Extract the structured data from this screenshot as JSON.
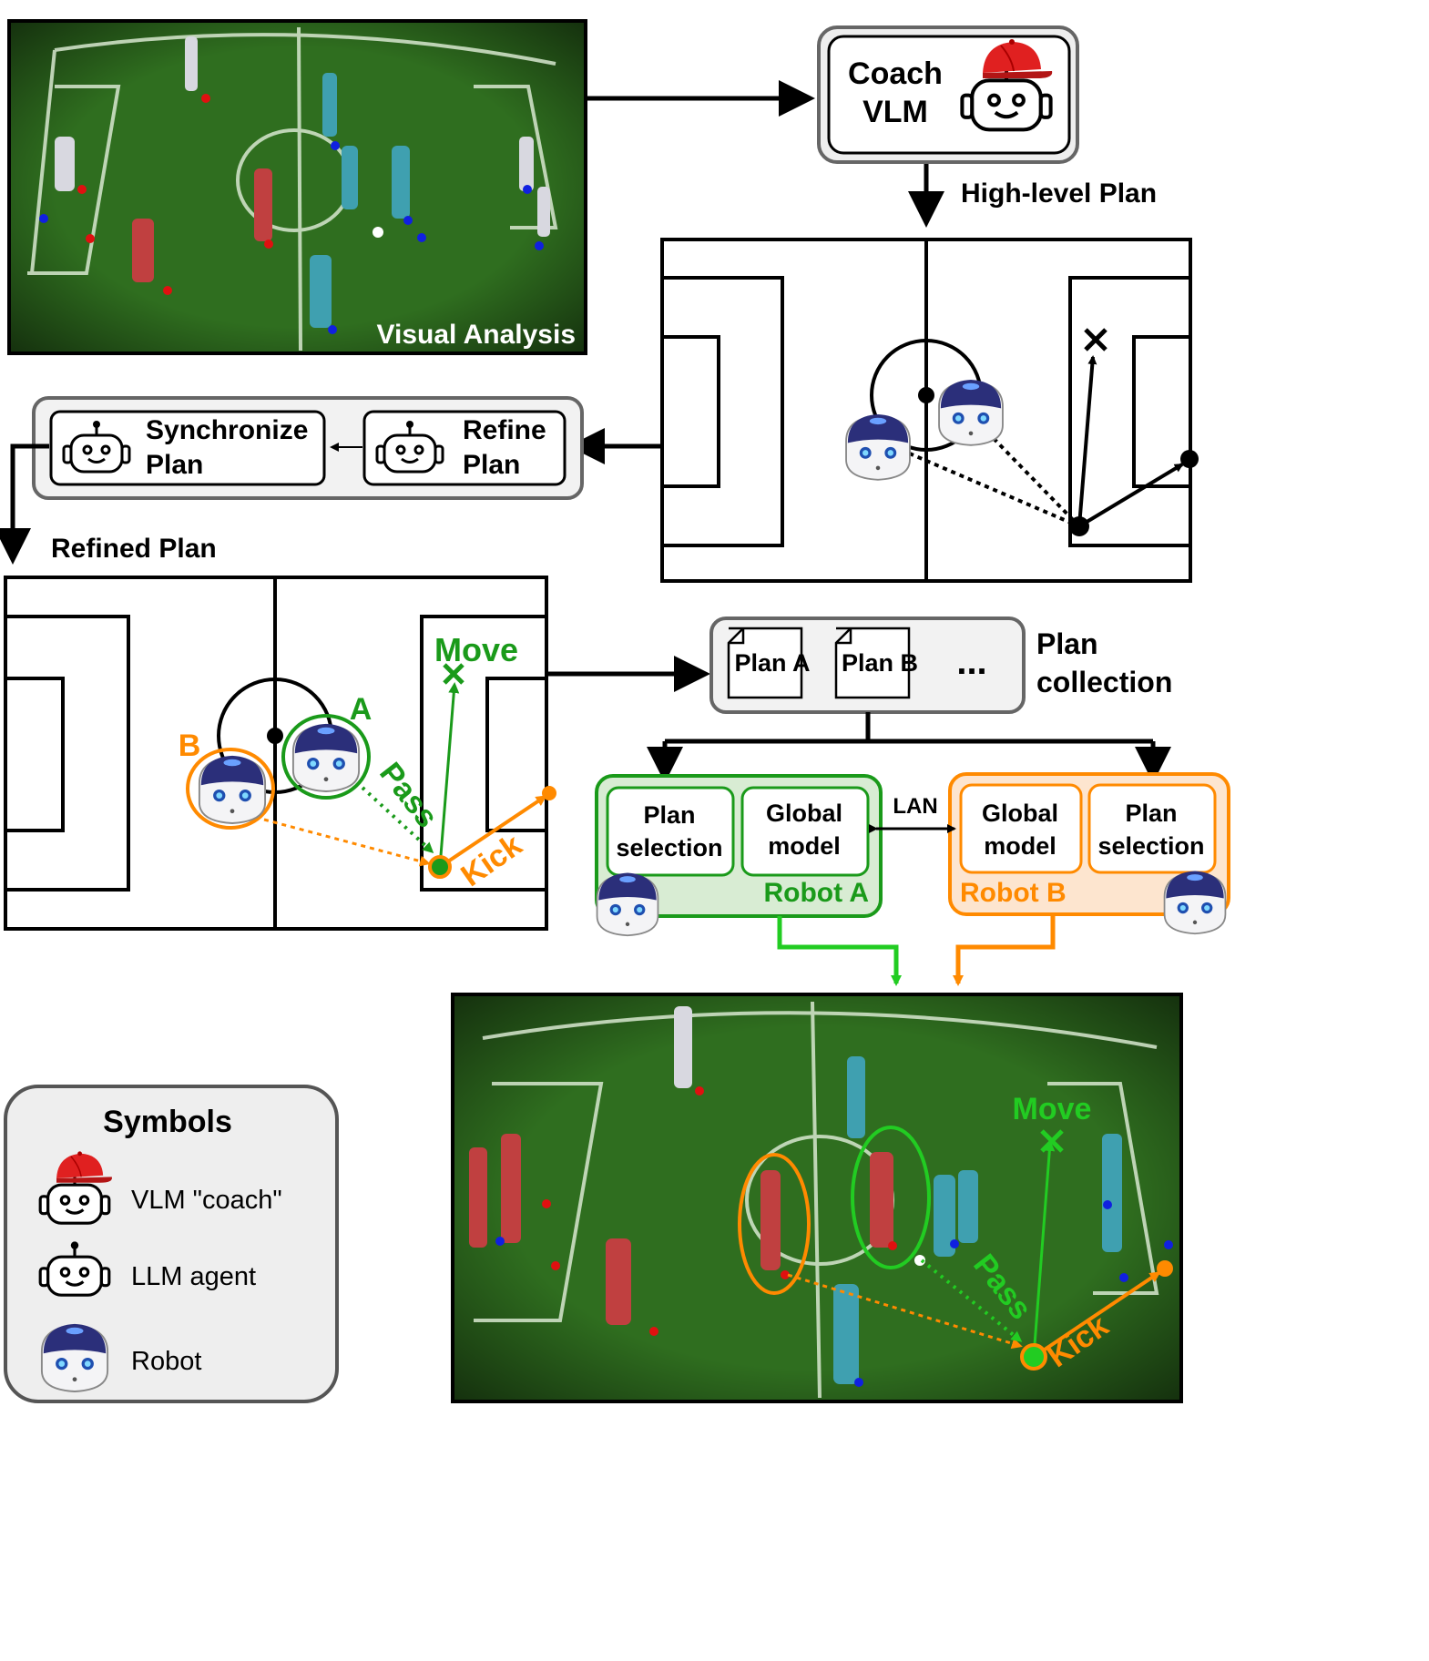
{
  "labels": {
    "visual_analysis": "Visual Analysis",
    "coach_line1": "Coach",
    "coach_line2": "VLM",
    "high_level_plan": "High-level Plan",
    "sync_line1": "Synchronize",
    "sync_line2": "Plan",
    "refine_line1": "Refine",
    "refine_line2": "Plan",
    "refined_plan": "Refined Plan",
    "move": "Move",
    "pass": "Pass",
    "kick": "Kick",
    "robot_a_letter": "A",
    "robot_b_letter": "B",
    "plan_a": "Plan A",
    "plan_b": "Plan B",
    "ellipsis": "...",
    "plan_collection_line1": "Plan",
    "plan_collection_line2": "collection",
    "plan_selection_line1": "Plan",
    "plan_selection_line2": "selection",
    "global_model_line1": "Global",
    "global_model_line2": "model",
    "lan": "LAN",
    "robot_a": "Robot A",
    "robot_b": "Robot B",
    "symbols_title": "Symbols",
    "symbol_vlm": "VLM \"coach\"",
    "symbol_llm": "LLM agent",
    "symbol_robot": "Robot"
  },
  "colors": {
    "green": "#1a9a1a",
    "bright_green": "#22cc22",
    "orange": "#ff8a00",
    "field": "#2f6e1f",
    "box_fill": "#f2f2f2",
    "robot_a_fill": "#d8ecd3",
    "robot_b_fill": "#fde5cf"
  },
  "icons": [
    "camera-feed",
    "vlm-coach-icon",
    "llm-agent-icon",
    "robot-icon",
    "document-icon",
    "red-cap-icon"
  ]
}
